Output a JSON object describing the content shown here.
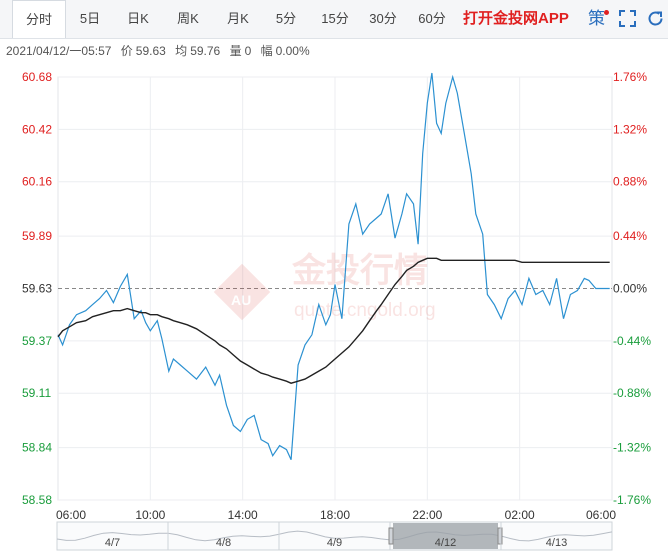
{
  "tabs": [
    {
      "label": "分时",
      "active": true
    },
    {
      "label": "5日"
    },
    {
      "label": "日K"
    },
    {
      "label": "周K"
    },
    {
      "label": "月K"
    },
    {
      "label": "5分"
    },
    {
      "label": "15分"
    },
    {
      "label": "30分"
    },
    {
      "label": "60分"
    }
  ],
  "promo_text": "打开金投网APP",
  "strategy_label": "策",
  "info": {
    "datetime": "2021/04/12/一05:57",
    "price_label": "价",
    "price": "59.63",
    "avg_label": "均",
    "avg": "59.76",
    "volume_label": "量",
    "volume": "0",
    "change_label": "幅",
    "change": "0.00%"
  },
  "watermark": {
    "cn": "金投行情",
    "en": "quote.cngold.org",
    "logo_text": "AU"
  },
  "colors": {
    "up": "#e02020",
    "down": "#1a9d3c",
    "price_line": "#2c91d1",
    "avg_line": "#222222",
    "accent": "#2a6ebd"
  },
  "chart_data": {
    "type": "line",
    "base_price": 59.63,
    "y_ticks_left": [
      "60.68",
      "60.42",
      "60.16",
      "59.89",
      "59.63",
      "59.37",
      "59.11",
      "58.84",
      "58.58"
    ],
    "y_ticks_right": [
      "1.76%",
      "1.32%",
      "0.88%",
      "0.44%",
      "0.00%",
      "-0.44%",
      "-0.88%",
      "-1.32%",
      "-1.76%"
    ],
    "ylim": [
      58.58,
      60.68
    ],
    "x_ticks": [
      "06:00",
      "10:00",
      "14:00",
      "18:00",
      "22:00",
      "02:00",
      "06:00"
    ],
    "x_tick_hours": [
      0,
      4,
      8,
      12,
      16,
      20,
      24
    ],
    "x_hours": [
      0,
      0.2,
      0.5,
      0.8,
      1.2,
      1.5,
      1.8,
      2.1,
      2.4,
      2.7,
      3.0,
      3.3,
      3.6,
      3.8,
      4.0,
      4.3,
      4.5,
      4.8,
      5.0,
      5.3,
      5.6,
      6.0,
      6.4,
      6.8,
      7.0,
      7.3,
      7.6,
      7.9,
      8.2,
      8.5,
      8.8,
      9.1,
      9.3,
      9.6,
      9.9,
      10.1,
      10.4,
      10.7,
      11.0,
      11.3,
      11.6,
      11.8,
      12.0,
      12.3,
      12.6,
      12.9,
      13.2,
      13.5,
      13.8,
      14.0,
      14.3,
      14.6,
      14.9,
      15.1,
      15.4,
      15.6,
      15.8,
      16.0,
      16.2,
      16.4,
      16.6,
      16.8,
      17.1,
      17.3,
      17.6,
      17.9,
      18.1,
      18.4,
      18.6,
      18.9,
      19.2,
      19.5,
      19.8,
      20.1,
      20.4,
      20.7,
      21.0,
      21.3,
      21.6,
      21.9,
      22.2,
      22.5,
      22.8,
      23.0,
      23.3,
      23.6,
      23.9
    ],
    "price": [
      59.4,
      59.35,
      59.45,
      59.5,
      59.52,
      59.55,
      59.58,
      59.62,
      59.56,
      59.64,
      59.7,
      59.48,
      59.52,
      59.46,
      59.42,
      59.47,
      59.38,
      59.22,
      59.28,
      59.25,
      59.22,
      59.18,
      59.24,
      59.15,
      59.2,
      59.05,
      58.95,
      58.92,
      58.98,
      59.0,
      58.88,
      58.86,
      58.8,
      58.85,
      58.83,
      58.78,
      59.25,
      59.35,
      59.4,
      59.55,
      59.45,
      59.5,
      59.65,
      59.48,
      59.95,
      60.05,
      59.9,
      59.95,
      59.98,
      60.0,
      60.1,
      59.88,
      60.0,
      60.1,
      60.05,
      59.85,
      60.3,
      60.55,
      60.7,
      60.45,
      60.4,
      60.55,
      60.68,
      60.6,
      60.4,
      60.2,
      60.0,
      59.9,
      59.6,
      59.55,
      59.48,
      59.58,
      59.62,
      59.55,
      59.68,
      59.6,
      59.62,
      59.55,
      59.68,
      59.48,
      59.6,
      59.62,
      59.68,
      59.67,
      59.63,
      59.63,
      59.63
    ],
    "avg": [
      59.39,
      59.42,
      59.44,
      59.46,
      59.47,
      59.49,
      59.5,
      59.51,
      59.52,
      59.52,
      59.53,
      59.52,
      59.51,
      59.51,
      59.5,
      59.5,
      59.49,
      59.48,
      59.47,
      59.46,
      59.45,
      59.43,
      59.4,
      59.37,
      59.35,
      59.33,
      59.3,
      59.27,
      59.25,
      59.23,
      59.21,
      59.2,
      59.19,
      59.18,
      59.17,
      59.16,
      59.17,
      59.18,
      59.2,
      59.22,
      59.24,
      59.26,
      59.28,
      59.31,
      59.34,
      59.38,
      59.42,
      59.47,
      59.52,
      59.55,
      59.6,
      59.65,
      59.69,
      59.72,
      59.74,
      59.76,
      59.77,
      59.78,
      59.78,
      59.78,
      59.77,
      59.77,
      59.77,
      59.77,
      59.77,
      59.77,
      59.77,
      59.77,
      59.77,
      59.77,
      59.77,
      59.77,
      59.77,
      59.76,
      59.76,
      59.76,
      59.76,
      59.76,
      59.76,
      59.76,
      59.76,
      59.76,
      59.76,
      59.76,
      59.76,
      59.76,
      59.76
    ],
    "navigator": {
      "day_labels": [
        "4/7",
        "4/8",
        "4/9",
        "4/12",
        "4/13"
      ],
      "selected_day_index": 3
    }
  }
}
